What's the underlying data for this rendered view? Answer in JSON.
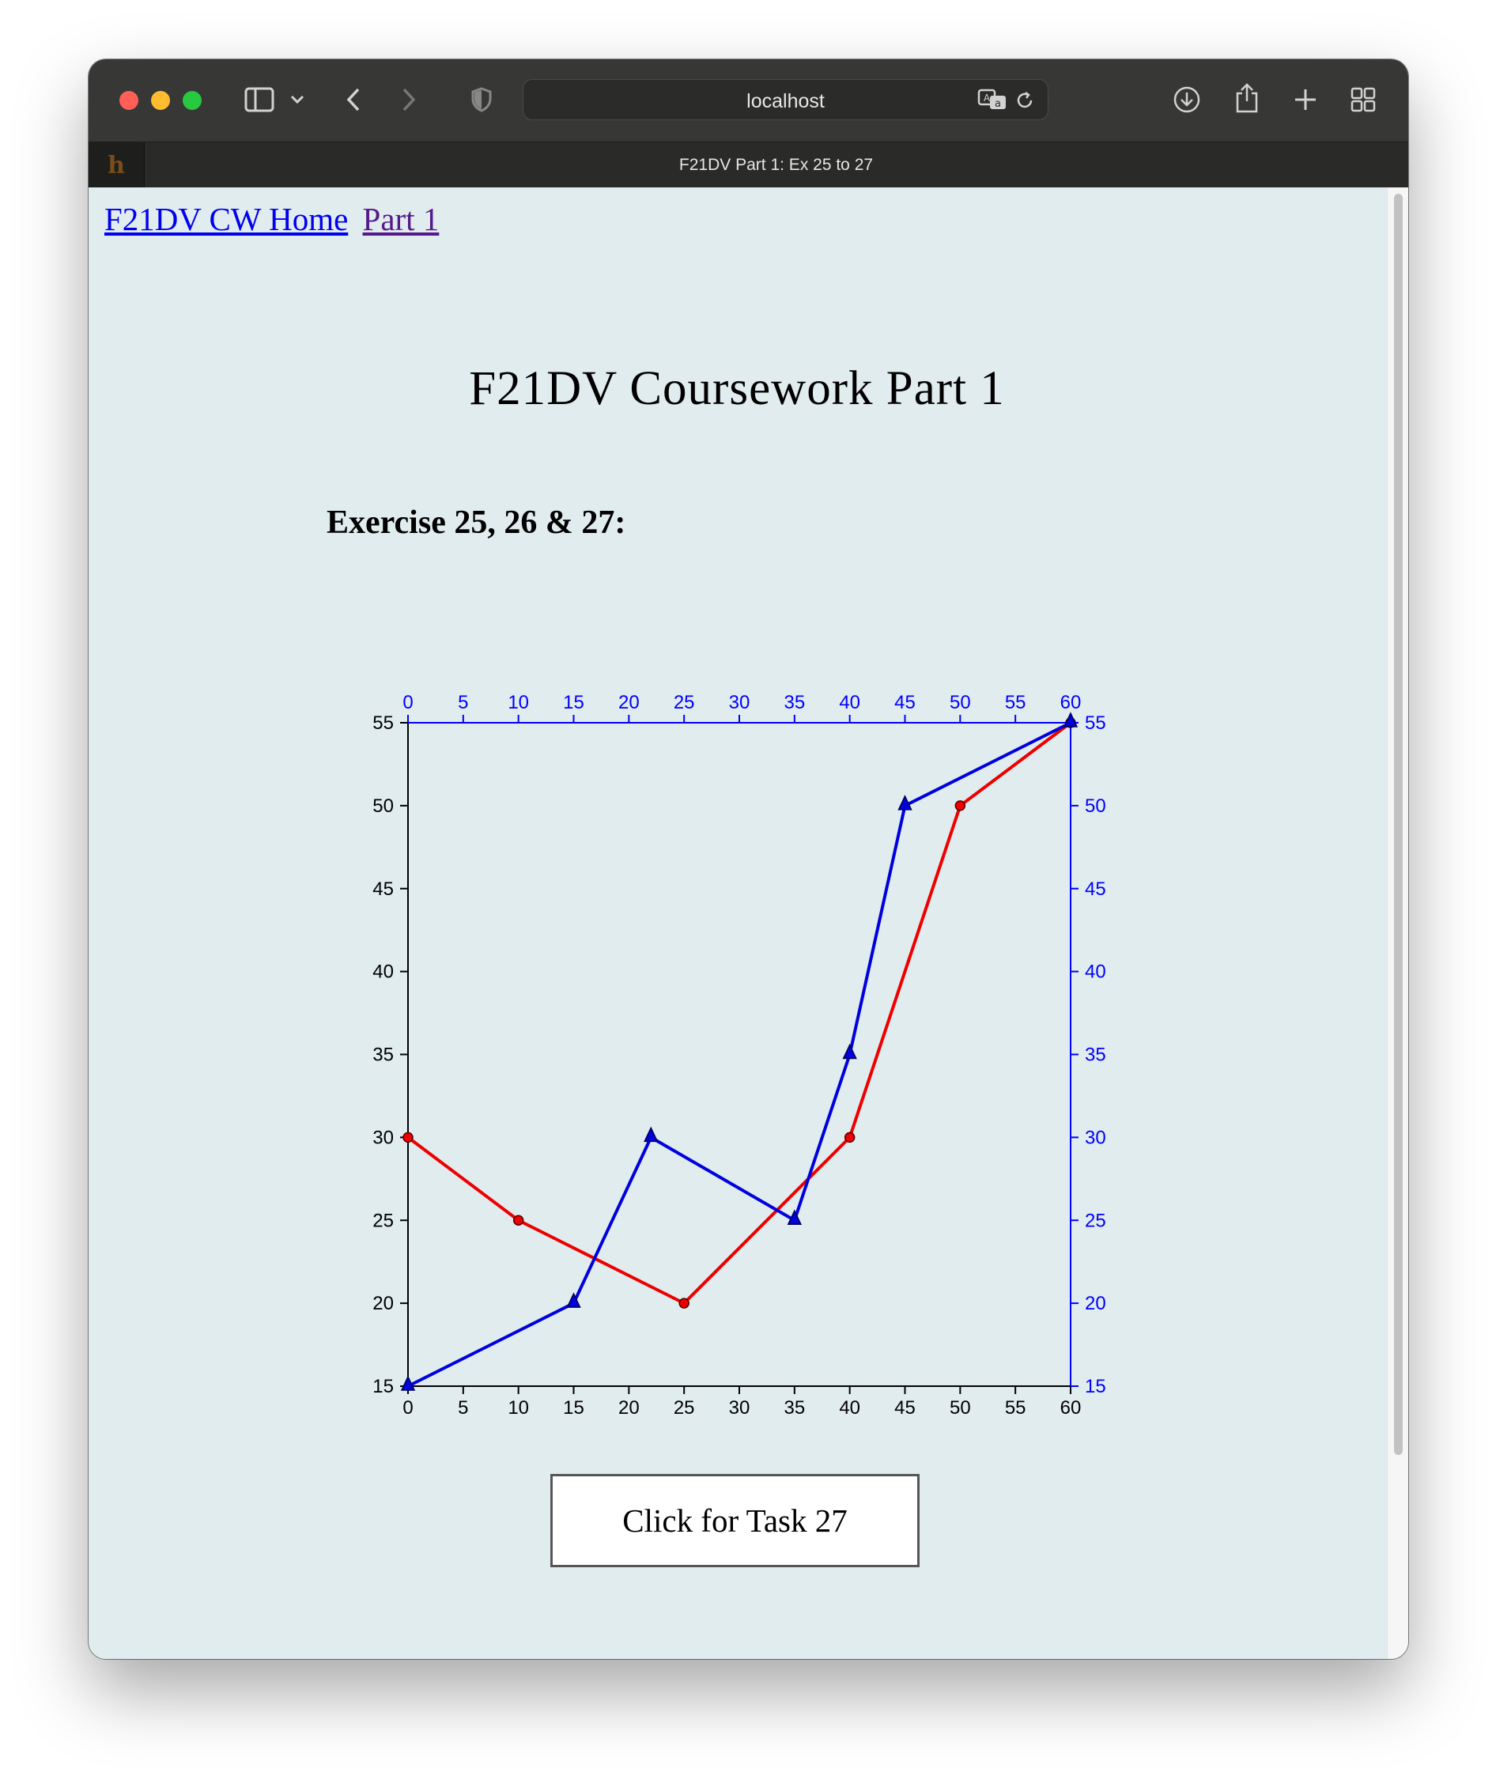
{
  "browser": {
    "url": "localhost",
    "tab_title": "F21DV Part 1: Ex 25 to 27"
  },
  "nav": {
    "home_link": "F21DV CW Home",
    "part_link": "Part 1"
  },
  "page": {
    "title": "F21DV Coursework Part 1",
    "exercise_heading": "Exercise 25, 26 & 27:",
    "task_button": "Click for Task 27"
  },
  "colors": {
    "page_background": "#e1ecee",
    "series_red": "#ee0000",
    "series_blue": "#0000dd",
    "axis_black": "#000000",
    "axis_blue": "#0000ff"
  },
  "chart_data": {
    "type": "line",
    "title": "",
    "xlabel": "",
    "ylabel": "",
    "xlim": [
      0,
      60
    ],
    "ylim": [
      15,
      55
    ],
    "x_ticks": [
      0,
      5,
      10,
      15,
      20,
      25,
      30,
      35,
      40,
      45,
      50,
      55,
      60
    ],
    "y_ticks": [
      15,
      20,
      25,
      30,
      35,
      40,
      45,
      50,
      55
    ],
    "axes": {
      "bottom": "black",
      "left": "black",
      "top": "blue",
      "right": "blue"
    },
    "grid": false,
    "series": [
      {
        "color": "#ee0000",
        "marker": "circle",
        "points": [
          [
            0,
            30
          ],
          [
            10,
            25
          ],
          [
            25,
            20
          ],
          [
            40,
            30
          ],
          [
            50,
            50
          ],
          [
            60,
            55
          ]
        ]
      },
      {
        "color": "#0000dd",
        "marker": "triangle",
        "points": [
          [
            0,
            15
          ],
          [
            15,
            20
          ],
          [
            22,
            30
          ],
          [
            35,
            25
          ],
          [
            40,
            35
          ],
          [
            45,
            50
          ],
          [
            60,
            55
          ]
        ]
      }
    ]
  }
}
